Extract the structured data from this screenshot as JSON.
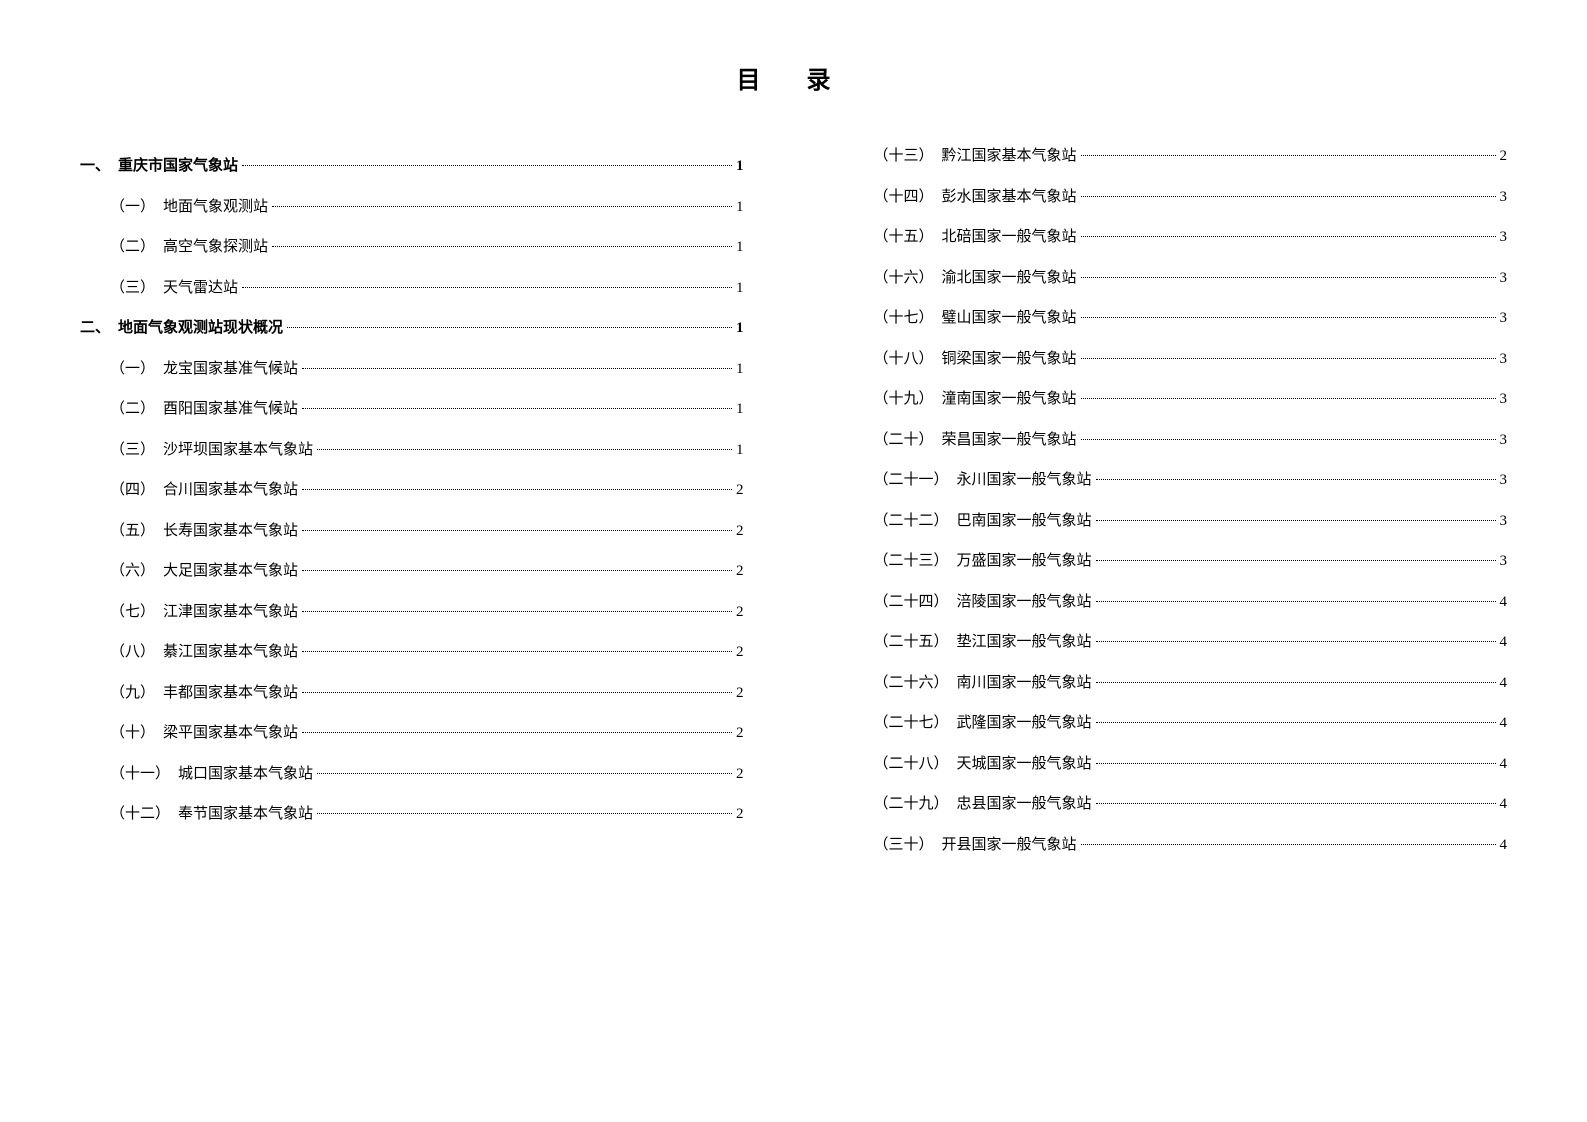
{
  "title": "目 录",
  "leftColumn": [
    {
      "level": 1,
      "number": "一、",
      "label": "重庆市国家气象站",
      "page": "1"
    },
    {
      "level": 2,
      "number": "（一）",
      "label": "地面气象观测站",
      "page": "1"
    },
    {
      "level": 2,
      "number": "（二）",
      "label": "高空气象探测站",
      "page": "1"
    },
    {
      "level": 2,
      "number": "（三）",
      "label": "天气雷达站",
      "page": "1"
    },
    {
      "level": 1,
      "number": "二、",
      "label": "地面气象观测站现状概况",
      "page": "1"
    },
    {
      "level": 2,
      "number": "（一）",
      "label": "龙宝国家基准气候站",
      "page": "1"
    },
    {
      "level": 2,
      "number": "（二）",
      "label": "酉阳国家基准气候站",
      "page": "1"
    },
    {
      "level": 2,
      "number": "（三）",
      "label": "沙坪坝国家基本气象站",
      "page": "1"
    },
    {
      "level": 2,
      "number": "（四）",
      "label": "合川国家基本气象站",
      "page": "2"
    },
    {
      "level": 2,
      "number": "（五）",
      "label": "长寿国家基本气象站",
      "page": "2"
    },
    {
      "level": 2,
      "number": "（六）",
      "label": "大足国家基本气象站",
      "page": "2"
    },
    {
      "level": 2,
      "number": "（七）",
      "label": "江津国家基本气象站",
      "page": "2"
    },
    {
      "level": 2,
      "number": "（八）",
      "label": "綦江国家基本气象站",
      "page": "2"
    },
    {
      "level": 2,
      "number": "（九）",
      "label": "丰都国家基本气象站",
      "page": "2"
    },
    {
      "level": 2,
      "number": "（十）",
      "label": "梁平国家基本气象站",
      "page": "2"
    },
    {
      "level": 2,
      "number": "（十一）",
      "label": "城口国家基本气象站",
      "page": "2"
    },
    {
      "level": 2,
      "number": "（十二）",
      "label": "奉节国家基本气象站",
      "page": "2"
    }
  ],
  "rightColumn": [
    {
      "level": 2,
      "number": "（十三）",
      "label": "黔江国家基本气象站",
      "page": "2"
    },
    {
      "level": 2,
      "number": "（十四）",
      "label": "彭水国家基本气象站",
      "page": "3"
    },
    {
      "level": 2,
      "number": "（十五）",
      "label": "北碚国家一般气象站",
      "page": "3"
    },
    {
      "level": 2,
      "number": "（十六）",
      "label": "渝北国家一般气象站",
      "page": "3"
    },
    {
      "level": 2,
      "number": "（十七）",
      "label": "璧山国家一般气象站",
      "page": "3"
    },
    {
      "level": 2,
      "number": "（十八）",
      "label": "铜梁国家一般气象站",
      "page": "3"
    },
    {
      "level": 2,
      "number": "（十九）",
      "label": "潼南国家一般气象站",
      "page": "3"
    },
    {
      "level": 2,
      "number": "（二十）",
      "label": "荣昌国家一般气象站",
      "page": "3"
    },
    {
      "level": 2,
      "number": "（二十一）",
      "label": "永川国家一般气象站",
      "page": "3"
    },
    {
      "level": 2,
      "number": "（二十二）",
      "label": "巴南国家一般气象站",
      "page": "3"
    },
    {
      "level": 2,
      "number": "（二十三）",
      "label": "万盛国家一般气象站",
      "page": "3"
    },
    {
      "level": 2,
      "number": "（二十四）",
      "label": "涪陵国家一般气象站",
      "page": "4"
    },
    {
      "level": 2,
      "number": "（二十五）",
      "label": "垫江国家一般气象站",
      "page": "4"
    },
    {
      "level": 2,
      "number": "（二十六）",
      "label": "南川国家一般气象站",
      "page": "4"
    },
    {
      "level": 2,
      "number": "（二十七）",
      "label": "武隆国家一般气象站",
      "page": "4"
    },
    {
      "level": 2,
      "number": "（二十八）",
      "label": "天城国家一般气象站",
      "page": "4"
    },
    {
      "level": 2,
      "number": "（二十九）",
      "label": "忠县国家一般气象站",
      "page": "4"
    },
    {
      "level": 2,
      "number": "（三十）",
      "label": "开县国家一般气象站",
      "page": "4"
    }
  ],
  "styling": {
    "background_color": "#ffffff",
    "text_color": "#000000",
    "title_fontsize": 24,
    "entry_fontsize": 15,
    "font_family": "SimSun"
  }
}
